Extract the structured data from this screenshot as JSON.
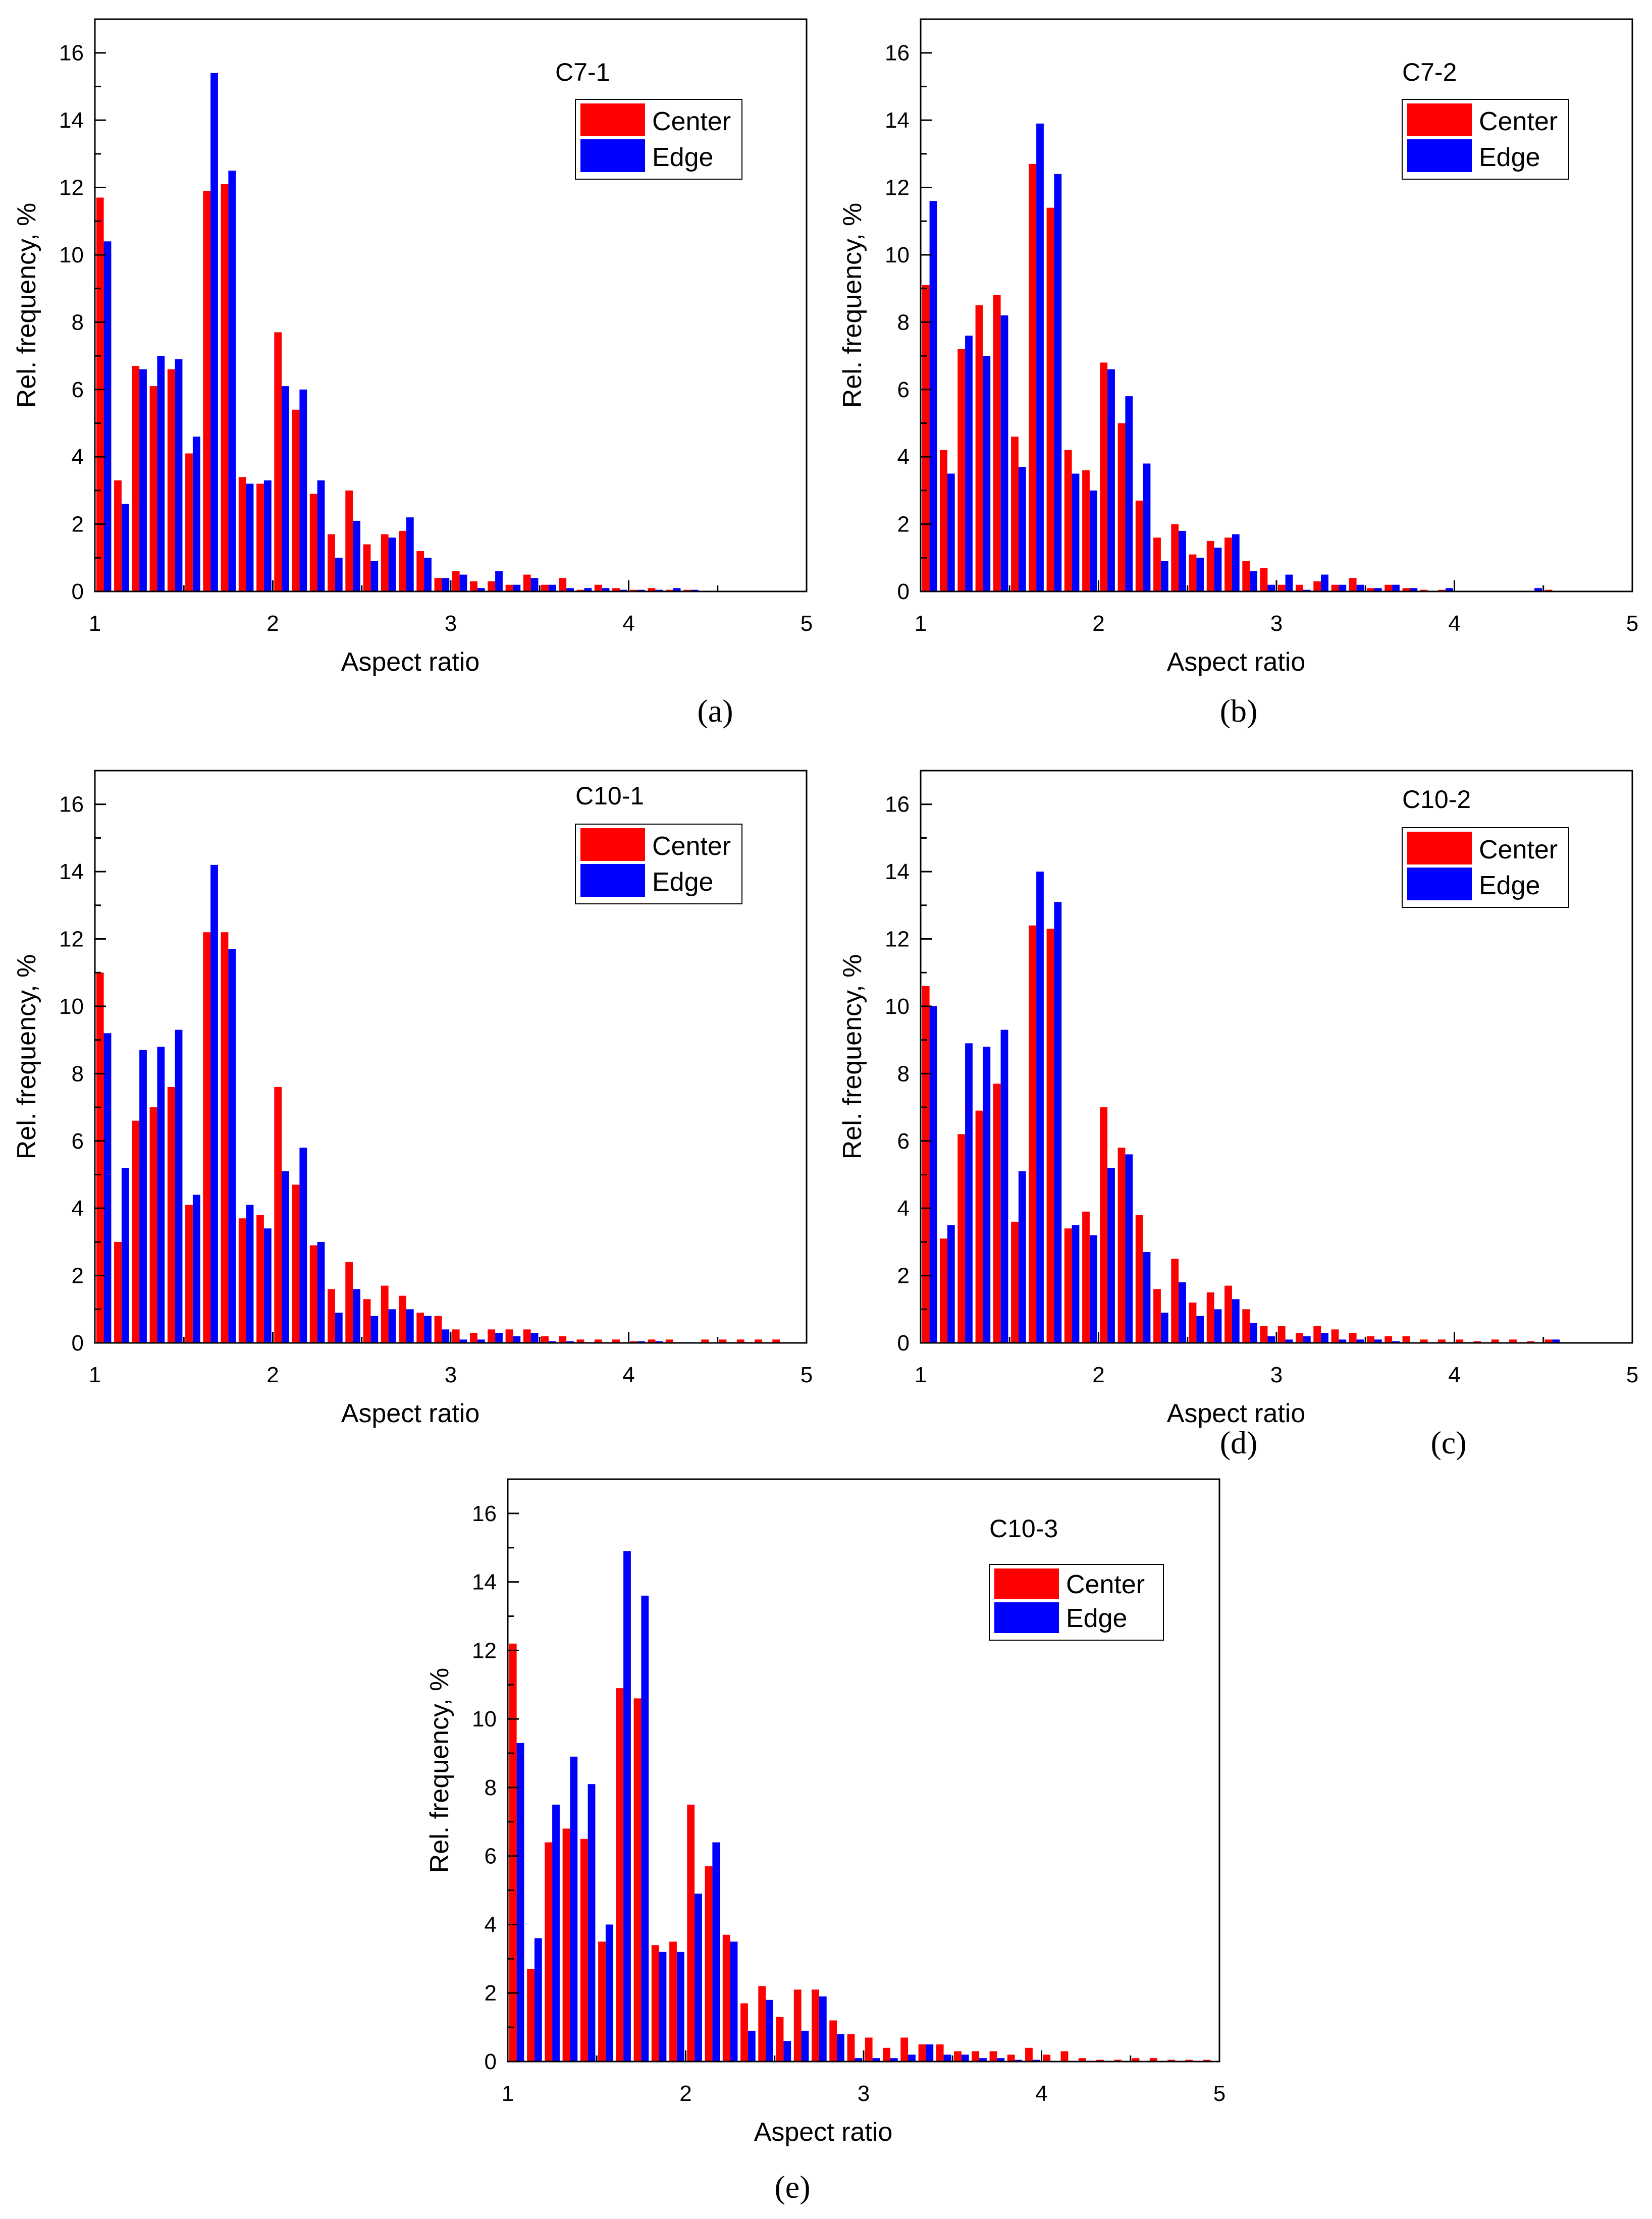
{
  "colors": {
    "center": "#ff0000",
    "edge": "#0000ff",
    "axis": "#000000"
  },
  "chart_data": [
    {
      "type": "bar",
      "panel_label": "(a)",
      "sample_label": "C7-1",
      "xlabel": "Aspect ratio",
      "ylabel": "Rel. frequency, %",
      "xlim": [
        1,
        5
      ],
      "ylim": [
        0,
        17
      ],
      "x_ticks": [
        "1",
        "2",
        "3",
        "4",
        "5"
      ],
      "y_ticks": [
        "0",
        "2",
        "4",
        "6",
        "8",
        "10",
        "12",
        "14",
        "16"
      ],
      "legend": "top-right",
      "x": [
        1.05,
        1.15,
        1.25,
        1.35,
        1.45,
        1.55,
        1.65,
        1.75,
        1.85,
        1.95,
        2.05,
        2.15,
        2.25,
        2.35,
        2.45,
        2.55,
        2.65,
        2.75,
        2.85,
        2.95,
        3.05,
        3.15,
        3.25,
        3.35,
        3.45,
        3.55,
        3.65,
        3.75,
        3.85,
        3.95,
        4.05,
        4.15,
        4.25,
        4.35,
        4.45,
        4.55,
        4.65,
        4.75,
        4.85,
        4.95
      ],
      "series": [
        {
          "name": "Center",
          "values": [
            11.7,
            3.3,
            6.7,
            6.1,
            6.6,
            4.1,
            11.9,
            12.1,
            3.4,
            3.2,
            7.7,
            5.4,
            2.9,
            1.7,
            3.0,
            1.4,
            1.7,
            1.8,
            1.2,
            0.4,
            0.6,
            0.3,
            0.3,
            0.2,
            0.5,
            0.2,
            0.4,
            0.05,
            0.2,
            0.1,
            0.05,
            0.1,
            0.05,
            0.05,
            0.02,
            0.02,
            0.02,
            0.02,
            0.02,
            0.02
          ]
        },
        {
          "name": "Edge",
          "values": [
            10.4,
            2.6,
            6.6,
            7.0,
            6.9,
            4.6,
            15.4,
            12.5,
            3.2,
            3.3,
            6.1,
            6.0,
            3.3,
            1.0,
            2.1,
            0.9,
            1.6,
            2.2,
            1.0,
            0.4,
            0.5,
            0.1,
            0.6,
            0.2,
            0.4,
            0.2,
            0.1,
            0.1,
            0.1,
            0.05,
            0.05,
            0.05,
            0.1,
            0.05,
            0.02,
            0.02,
            0.02,
            0.02,
            0.02,
            0.02
          ]
        }
      ]
    },
    {
      "type": "bar",
      "panel_label": "(b)",
      "sample_label": "C7-2",
      "xlabel": "Aspect ratio",
      "ylabel": "Rel. frequency, %",
      "xlim": [
        1,
        5
      ],
      "ylim": [
        0,
        17
      ],
      "x_ticks": [
        "1",
        "2",
        "3",
        "4",
        "5"
      ],
      "y_ticks": [
        "0",
        "2",
        "4",
        "6",
        "8",
        "10",
        "12",
        "14",
        "16"
      ],
      "legend": "top-right",
      "x": [
        1.05,
        1.15,
        1.25,
        1.35,
        1.45,
        1.55,
        1.65,
        1.75,
        1.85,
        1.95,
        2.05,
        2.15,
        2.25,
        2.35,
        2.45,
        2.55,
        2.65,
        2.75,
        2.85,
        2.95,
        3.05,
        3.15,
        3.25,
        3.35,
        3.45,
        3.55,
        3.65,
        3.75,
        3.85,
        3.95,
        4.05,
        4.15,
        4.25,
        4.35,
        4.45,
        4.55,
        4.65,
        4.75,
        4.85,
        4.95
      ],
      "series": [
        {
          "name": "Center",
          "values": [
            9.1,
            4.2,
            7.2,
            8.5,
            8.8,
            4.6,
            12.7,
            11.4,
            4.2,
            3.6,
            6.8,
            5.0,
            2.7,
            1.6,
            2.0,
            1.1,
            1.5,
            1.6,
            0.9,
            0.7,
            0.2,
            0.2,
            0.3,
            0.2,
            0.4,
            0.1,
            0.2,
            0.1,
            0.05,
            0.05,
            0.02,
            0.02,
            0.02,
            0.02,
            0.02,
            0.05,
            0.02,
            0.02,
            0.02,
            0.02
          ]
        },
        {
          "name": "Edge",
          "values": [
            11.6,
            3.5,
            7.6,
            7.0,
            8.2,
            3.7,
            13.9,
            12.4,
            3.5,
            3.0,
            6.6,
            5.8,
            3.8,
            0.9,
            1.8,
            1.0,
            1.3,
            1.7,
            0.6,
            0.2,
            0.5,
            0.05,
            0.5,
            0.2,
            0.2,
            0.1,
            0.2,
            0.1,
            0.02,
            0.1,
            0.02,
            0.02,
            0.02,
            0.02,
            0.1,
            0.02,
            0.02,
            0.02,
            0.02,
            0.02
          ]
        }
      ]
    },
    {
      "type": "bar",
      "panel_label": "(c)",
      "sample_label": "C10-1",
      "xlabel": "Aspect ratio",
      "ylabel": "Rel. frequency, %",
      "xlim": [
        1,
        5
      ],
      "ylim": [
        0,
        17
      ],
      "x_ticks": [
        "1",
        "2",
        "3",
        "4",
        "5"
      ],
      "y_ticks": [
        "0",
        "2",
        "4",
        "6",
        "8",
        "10",
        "12",
        "14",
        "16"
      ],
      "legend": "top-right",
      "x": [
        1.05,
        1.15,
        1.25,
        1.35,
        1.45,
        1.55,
        1.65,
        1.75,
        1.85,
        1.95,
        2.05,
        2.15,
        2.25,
        2.35,
        2.45,
        2.55,
        2.65,
        2.75,
        2.85,
        2.95,
        3.05,
        3.15,
        3.25,
        3.35,
        3.45,
        3.55,
        3.65,
        3.75,
        3.85,
        3.95,
        4.05,
        4.15,
        4.25,
        4.35,
        4.45,
        4.55,
        4.65,
        4.75,
        4.85,
        4.95
      ],
      "series": [
        {
          "name": "Center",
          "values": [
            11.0,
            3.0,
            6.6,
            7.0,
            7.6,
            4.1,
            12.2,
            12.2,
            3.7,
            3.8,
            7.6,
            4.7,
            2.9,
            1.6,
            2.4,
            1.3,
            1.7,
            1.4,
            0.9,
            0.8,
            0.4,
            0.3,
            0.4,
            0.4,
            0.4,
            0.2,
            0.2,
            0.1,
            0.1,
            0.1,
            0.05,
            0.1,
            0.1,
            0.02,
            0.1,
            0.1,
            0.1,
            0.1,
            0.1,
            0.02
          ]
        },
        {
          "name": "Edge",
          "values": [
            9.2,
            5.2,
            8.7,
            8.8,
            9.3,
            4.4,
            14.2,
            11.7,
            4.1,
            3.4,
            5.1,
            5.8,
            3.0,
            0.9,
            1.6,
            0.8,
            1.0,
            1.0,
            0.8,
            0.4,
            0.1,
            0.1,
            0.3,
            0.2,
            0.3,
            0.05,
            0.05,
            0.02,
            0.02,
            0.02,
            0.05,
            0.05,
            0.02,
            0.02,
            0.02,
            0.02,
            0.02,
            0.02,
            0.02,
            0.02
          ]
        }
      ]
    },
    {
      "type": "bar",
      "panel_label": "(d)",
      "sample_label": "C10-2",
      "xlabel": "Aspect ratio",
      "ylabel": "Rel. frequency, %",
      "xlim": [
        1,
        5
      ],
      "ylim": [
        0,
        17
      ],
      "x_ticks": [
        "1",
        "2",
        "3",
        "4",
        "5"
      ],
      "y_ticks": [
        "0",
        "2",
        "4",
        "6",
        "8",
        "10",
        "12",
        "14",
        "16"
      ],
      "legend": "top-right",
      "x": [
        1.05,
        1.15,
        1.25,
        1.35,
        1.45,
        1.55,
        1.65,
        1.75,
        1.85,
        1.95,
        2.05,
        2.15,
        2.25,
        2.35,
        2.45,
        2.55,
        2.65,
        2.75,
        2.85,
        2.95,
        3.05,
        3.15,
        3.25,
        3.35,
        3.45,
        3.55,
        3.65,
        3.75,
        3.85,
        3.95,
        4.05,
        4.15,
        4.25,
        4.35,
        4.45,
        4.55,
        4.65,
        4.75,
        4.85,
        4.95
      ],
      "series": [
        {
          "name": "Center",
          "values": [
            10.6,
            3.1,
            6.2,
            6.9,
            7.7,
            3.6,
            12.4,
            12.3,
            3.4,
            3.9,
            7.0,
            5.8,
            3.8,
            1.6,
            2.5,
            1.2,
            1.5,
            1.7,
            1.0,
            0.5,
            0.5,
            0.3,
            0.5,
            0.4,
            0.3,
            0.2,
            0.2,
            0.2,
            0.1,
            0.1,
            0.1,
            0.05,
            0.1,
            0.1,
            0.05,
            0.1,
            0.02,
            0.02,
            0.02,
            0.02
          ]
        },
        {
          "name": "Edge",
          "values": [
            10.0,
            3.5,
            8.9,
            8.8,
            9.3,
            5.1,
            14.0,
            13.1,
            3.5,
            3.2,
            5.2,
            5.6,
            2.7,
            0.9,
            1.8,
            0.8,
            1.0,
            1.3,
            0.6,
            0.2,
            0.1,
            0.2,
            0.3,
            0.1,
            0.1,
            0.1,
            0.05,
            0.02,
            0.02,
            0.02,
            0.02,
            0.02,
            0.02,
            0.02,
            0.02,
            0.1,
            0.02,
            0.02,
            0.02,
            0.02
          ]
        }
      ]
    },
    {
      "type": "bar",
      "panel_label": "(e)",
      "sample_label": "C10-3",
      "xlabel": "Aspect ratio",
      "ylabel": "Rel. frequency, %",
      "xlim": [
        1,
        5
      ],
      "ylim": [
        0,
        17
      ],
      "x_ticks": [
        "1",
        "2",
        "3",
        "4",
        "5"
      ],
      "y_ticks": [
        "0",
        "2",
        "4",
        "6",
        "8",
        "10",
        "12",
        "14",
        "16"
      ],
      "legend": "top-right",
      "x": [
        1.05,
        1.15,
        1.25,
        1.35,
        1.45,
        1.55,
        1.65,
        1.75,
        1.85,
        1.95,
        2.05,
        2.15,
        2.25,
        2.35,
        2.45,
        2.55,
        2.65,
        2.75,
        2.85,
        2.95,
        3.05,
        3.15,
        3.25,
        3.35,
        3.45,
        3.55,
        3.65,
        3.75,
        3.85,
        3.95,
        4.05,
        4.15,
        4.25,
        4.35,
        4.45,
        4.55,
        4.65,
        4.75,
        4.85,
        4.95
      ],
      "series": [
        {
          "name": "Center",
          "values": [
            12.2,
            2.7,
            6.4,
            6.8,
            6.5,
            3.5,
            10.9,
            10.6,
            3.4,
            3.5,
            7.5,
            5.7,
            3.7,
            1.7,
            2.2,
            1.3,
            2.1,
            2.1,
            1.2,
            0.8,
            0.7,
            0.4,
            0.7,
            0.5,
            0.5,
            0.3,
            0.3,
            0.3,
            0.2,
            0.4,
            0.2,
            0.3,
            0.1,
            0.05,
            0.05,
            0.1,
            0.1,
            0.05,
            0.05,
            0.05
          ]
        },
        {
          "name": "Edge",
          "values": [
            9.3,
            3.6,
            7.5,
            8.9,
            8.1,
            4.0,
            14.9,
            13.6,
            3.2,
            3.2,
            4.9,
            6.4,
            3.5,
            0.9,
            1.8,
            0.6,
            0.9,
            1.9,
            0.8,
            0.1,
            0.1,
            0.1,
            0.2,
            0.5,
            0.2,
            0.2,
            0.1,
            0.1,
            0.05,
            0.05,
            0.02,
            0.02,
            0.02,
            0.02,
            0.02,
            0.02,
            0.02,
            0.02,
            0.02,
            0.02
          ]
        }
      ]
    }
  ]
}
